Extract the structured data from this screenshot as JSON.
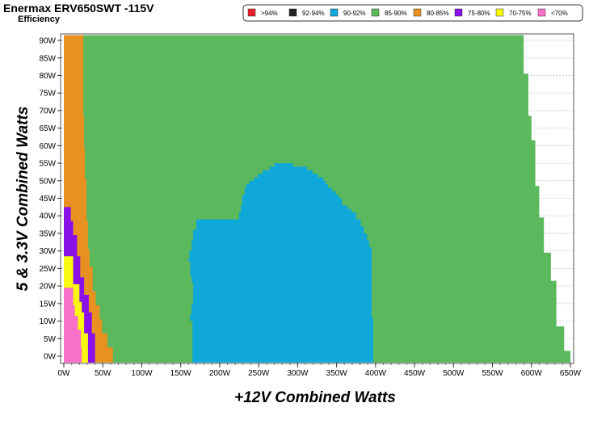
{
  "chart_data": {
    "type": "heatmap",
    "title": "Enermax ERV650SWT -115V",
    "subtitle": "Efficiency",
    "xlabel": "+12V Combined Watts",
    "ylabel": "5 & 3.3V Combined Watts",
    "xlim": [
      0,
      650
    ],
    "ylim": [
      0,
      90
    ],
    "x_ticks": [
      "0W",
      "50W",
      "100W",
      "150W",
      "200W",
      "250W",
      "300W",
      "350W",
      "400W",
      "450W",
      "500W",
      "550W",
      "600W",
      "650W"
    ],
    "y_ticks": [
      "0W",
      "5W",
      "10W",
      "15W",
      "20W",
      "25W",
      "30W",
      "35W",
      "40W",
      "45W",
      "50W",
      "55W",
      "60W",
      "65W",
      "70W",
      "75W",
      "80W",
      "85W",
      "90W"
    ],
    "grid": true,
    "legend_position": "top-right",
    "legend": [
      {
        "label": ">94%",
        "color": "#e8202a"
      },
      {
        "label": "92-94%",
        "color": "#222222"
      },
      {
        "label": "90-92%",
        "color": "#10a8d8"
      },
      {
        "label": "85-90%",
        "color": "#5cb85c"
      },
      {
        "label": "80-85%",
        "color": "#e89020"
      },
      {
        "label": "75-80%",
        "color": "#8a10e8"
      },
      {
        "label": "70-75%",
        "color": "#f8f810"
      },
      {
        "label": "<70%",
        "color": "#f870c8"
      }
    ],
    "zones": [
      {
        "band": "85-90%",
        "color": "#5cb85c",
        "boundary": [
          [
            0,
            -2.5
          ],
          [
            650,
            -2.5
          ],
          [
            650,
            1.5
          ],
          [
            642,
            1.5
          ],
          [
            642,
            8.5
          ],
          [
            632,
            8.5
          ],
          [
            632,
            21.5
          ],
          [
            625,
            21.5
          ],
          [
            625,
            29.5
          ],
          [
            616,
            29.5
          ],
          [
            616,
            39.5
          ],
          [
            610,
            39.5
          ],
          [
            610,
            48.5
          ],
          [
            605,
            48.5
          ],
          [
            605,
            61.5
          ],
          [
            600,
            61.5
          ],
          [
            600,
            68.5
          ],
          [
            596,
            68.5
          ],
          [
            596,
            80.5
          ],
          [
            590,
            80.5
          ],
          [
            590,
            91.5
          ],
          [
            0,
            91.5
          ]
        ]
      },
      {
        "band": "90-92%",
        "color": "#10a8d8",
        "boundary": [
          [
            165,
            -2.5
          ],
          [
            397,
            -2.5
          ],
          [
            397,
            11
          ],
          [
            395,
            11
          ],
          [
            395,
            31
          ],
          [
            392,
            31
          ],
          [
            392,
            33
          ],
          [
            389,
            33
          ],
          [
            389,
            35
          ],
          [
            385,
            35
          ],
          [
            385,
            37
          ],
          [
            381,
            37
          ],
          [
            381,
            39
          ],
          [
            375,
            39
          ],
          [
            375,
            41
          ],
          [
            369,
            41
          ],
          [
            369,
            42
          ],
          [
            364,
            42
          ],
          [
            364,
            43
          ],
          [
            357,
            43
          ],
          [
            357,
            45
          ],
          [
            353,
            45
          ],
          [
            353,
            46
          ],
          [
            349,
            46
          ],
          [
            349,
            47
          ],
          [
            344,
            47
          ],
          [
            344,
            48
          ],
          [
            339,
            48
          ],
          [
            339,
            49
          ],
          [
            336,
            49
          ],
          [
            336,
            50
          ],
          [
            333,
            50
          ],
          [
            333,
            51
          ],
          [
            326,
            51
          ],
          [
            326,
            52
          ],
          [
            319,
            52
          ],
          [
            319,
            53
          ],
          [
            312,
            53
          ],
          [
            312,
            54
          ],
          [
            294,
            54
          ],
          [
            294,
            55
          ],
          [
            270,
            55
          ],
          [
            270,
            54
          ],
          [
            264,
            54
          ],
          [
            264,
            53
          ],
          [
            255,
            53
          ],
          [
            255,
            52
          ],
          [
            249,
            52
          ],
          [
            249,
            51
          ],
          [
            244,
            51
          ],
          [
            244,
            50
          ],
          [
            238,
            50
          ],
          [
            238,
            49
          ],
          [
            234,
            49
          ],
          [
            234,
            48
          ],
          [
            232,
            48
          ],
          [
            232,
            46
          ],
          [
            229,
            46
          ],
          [
            229,
            43
          ],
          [
            227,
            43
          ],
          [
            227,
            41
          ],
          [
            225,
            41
          ],
          [
            225,
            40
          ],
          [
            225,
            39
          ],
          [
            170,
            39
          ],
          [
            170,
            36
          ],
          [
            166,
            36
          ],
          [
            166,
            33
          ],
          [
            164,
            33
          ],
          [
            164,
            30
          ],
          [
            161,
            30
          ],
          [
            161,
            28
          ],
          [
            160,
            28
          ],
          [
            160,
            27
          ],
          [
            162,
            27
          ],
          [
            162,
            23
          ],
          [
            164,
            23
          ],
          [
            164,
            21
          ],
          [
            166,
            21
          ],
          [
            166,
            15
          ],
          [
            164,
            15
          ],
          [
            164,
            12
          ],
          [
            162,
            12
          ],
          [
            162,
            10
          ],
          [
            165,
            10
          ]
        ]
      },
      {
        "band": "80-85%",
        "color": "#e89020",
        "boundary": [
          [
            0,
            -2.5
          ],
          [
            63,
            -2.5
          ],
          [
            63,
            2.5
          ],
          [
            56,
            2.5
          ],
          [
            56,
            6.5
          ],
          [
            49,
            6.5
          ],
          [
            49,
            10.5
          ],
          [
            46,
            10.5
          ],
          [
            46,
            14.5
          ],
          [
            41,
            14.5
          ],
          [
            41,
            18.5
          ],
          [
            37,
            18.5
          ],
          [
            37,
            25.5
          ],
          [
            33,
            25.5
          ],
          [
            33,
            30.5
          ],
          [
            31,
            30.5
          ],
          [
            31,
            38.5
          ],
          [
            29,
            38.5
          ],
          [
            29,
            50.5
          ],
          [
            27,
            50.5
          ],
          [
            27,
            59.5
          ],
          [
            26,
            59.5
          ],
          [
            26,
            68.5
          ],
          [
            25,
            68.5
          ],
          [
            25,
            91.5
          ],
          [
            0,
            91.5
          ]
        ]
      },
      {
        "band": "75-80%",
        "color": "#8a10e8",
        "boundary": [
          [
            0,
            -2.5
          ],
          [
            40,
            -2.5
          ],
          [
            40,
            6.5
          ],
          [
            36,
            6.5
          ],
          [
            36,
            12.5
          ],
          [
            32,
            12.5
          ],
          [
            32,
            17.5
          ],
          [
            26,
            17.5
          ],
          [
            26,
            22.5
          ],
          [
            21,
            22.5
          ],
          [
            21,
            28.5
          ],
          [
            17,
            28.5
          ],
          [
            17,
            34.5
          ],
          [
            12,
            34.5
          ],
          [
            12,
            38.5
          ],
          [
            9,
            38.5
          ],
          [
            9,
            42.5
          ],
          [
            0,
            42.5
          ]
        ]
      },
      {
        "band": "70-75%",
        "color": "#f8f810",
        "boundary": [
          [
            0,
            -2.5
          ],
          [
            31,
            -2.5
          ],
          [
            31,
            6.5
          ],
          [
            26,
            6.5
          ],
          [
            26,
            12.5
          ],
          [
            23,
            12.5
          ],
          [
            23,
            15.5
          ],
          [
            20,
            15.5
          ],
          [
            20,
            20.5
          ],
          [
            12,
            20.5
          ],
          [
            12,
            28.5
          ],
          [
            0,
            28.5
          ]
        ]
      },
      {
        "band": "<70%",
        "color": "#f870c8",
        "boundary": [
          [
            0,
            -2.5
          ],
          [
            23,
            -2.5
          ],
          [
            23,
            2.5
          ],
          [
            22,
            2.5
          ],
          [
            22,
            7.5
          ],
          [
            18,
            7.5
          ],
          [
            18,
            11.5
          ],
          [
            14,
            11.5
          ],
          [
            14,
            14.5
          ],
          [
            12,
            14.5
          ],
          [
            12,
            19.5
          ],
          [
            0,
            19.5
          ]
        ]
      }
    ]
  }
}
